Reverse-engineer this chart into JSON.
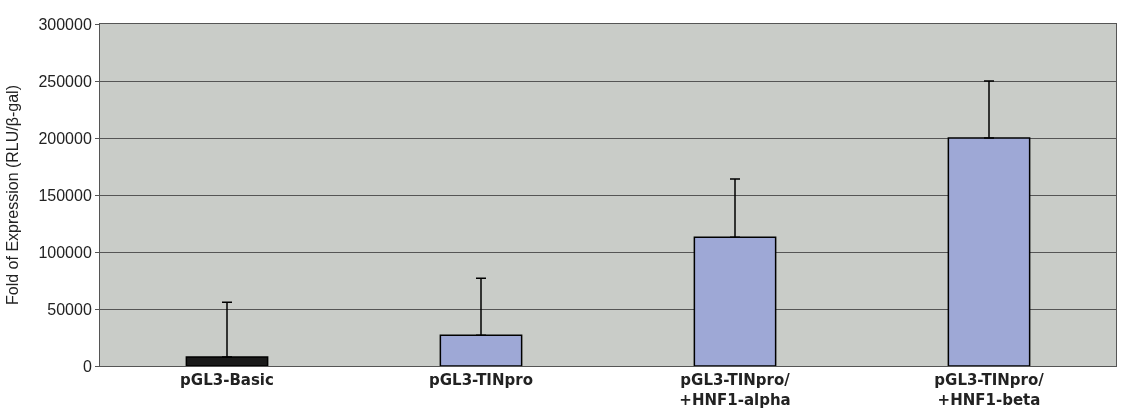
{
  "chart_data": {
    "type": "bar",
    "ylabel": "Fold of Expression (RLU/β-gal)",
    "categories": [
      "pGL3-Basic",
      "pGL3-TINpro",
      "pGL3-TINpro/\n+HNF1-alpha",
      "pGL3-TINpro/\n+HNF1-beta"
    ],
    "values": [
      8000,
      27000,
      113000,
      200000
    ],
    "colors": [
      "#1a1a1a",
      "#9ea8d6",
      "#9ea8d6",
      "#9ea8d6"
    ],
    "errors": [
      [
        8000,
        56000
      ],
      [
        27000,
        77000
      ],
      [
        113000,
        164000
      ],
      [
        200000,
        250000
      ]
    ],
    "ylim": [
      0,
      300000
    ],
    "yticks": [
      0,
      50000,
      100000,
      150000,
      200000,
      250000,
      300000
    ],
    "grid": "y",
    "legend": false
  }
}
